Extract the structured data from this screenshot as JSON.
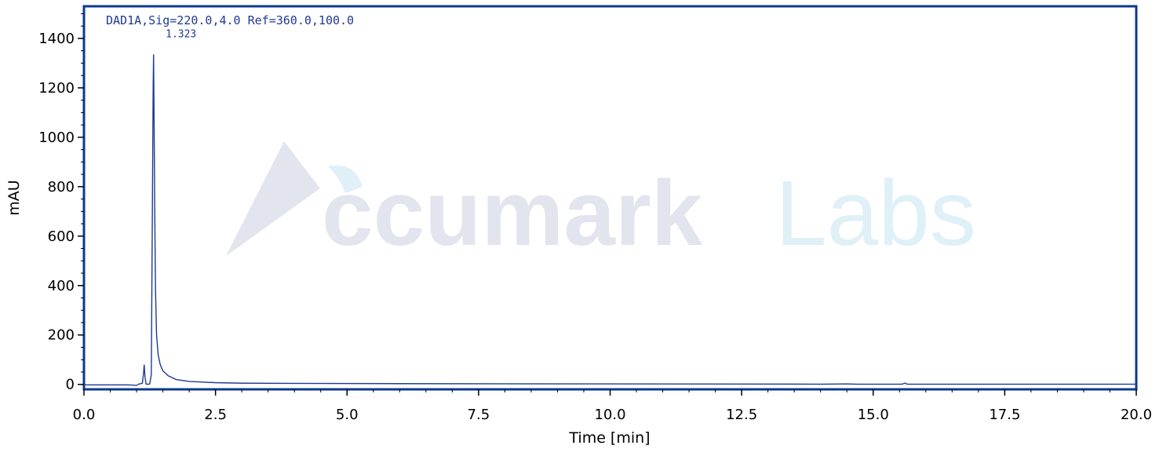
{
  "chart_data": {
    "type": "line",
    "title": "",
    "signal_label": "DAD1A,Sig=220.0,4.0 Ref=360.0,100.0",
    "xlabel": "Time [min]",
    "ylabel": "mAU",
    "xlim": [
      0,
      20
    ],
    "ylim": [
      -20,
      1530
    ],
    "x_ticks": [
      0,
      2.5,
      5,
      7.5,
      10,
      12.5,
      15,
      17.5,
      20
    ],
    "x_tick_labels": [
      "0.0",
      "2.5",
      "5.0",
      "7.5",
      "10.0",
      "12.5",
      "15.0",
      "17.5",
      "20.0"
    ],
    "y_ticks": [
      0,
      200,
      400,
      600,
      800,
      1000,
      1200,
      1400
    ],
    "y_tick_labels": [
      "0",
      "200",
      "400",
      "600",
      "800",
      "1000",
      "1200",
      "1400"
    ],
    "grid": false,
    "series": [
      {
        "color": "#1f3a93",
        "points": [
          [
            0,
            -2
          ],
          [
            0.5,
            -2
          ],
          [
            0.85,
            -2
          ],
          [
            0.95,
            -3
          ],
          [
            1.0,
            -4
          ],
          [
            1.05,
            2
          ],
          [
            1.08,
            3
          ],
          [
            1.11,
            5
          ],
          [
            1.13,
            40
          ],
          [
            1.145,
            80
          ],
          [
            1.16,
            30
          ],
          [
            1.18,
            2
          ],
          [
            1.21,
            0
          ],
          [
            1.25,
            2
          ],
          [
            1.28,
            40
          ],
          [
            1.3,
            700
          ],
          [
            1.315,
            1200
          ],
          [
            1.323,
            1335
          ],
          [
            1.33,
            1150
          ],
          [
            1.345,
            700
          ],
          [
            1.36,
            380
          ],
          [
            1.38,
            200
          ],
          [
            1.41,
            120
          ],
          [
            1.45,
            80
          ],
          [
            1.5,
            55
          ],
          [
            1.6,
            35
          ],
          [
            1.75,
            20
          ],
          [
            2.0,
            12
          ],
          [
            2.5,
            7
          ],
          [
            3.0,
            5
          ],
          [
            4.0,
            4
          ],
          [
            6.0,
            3
          ],
          [
            10.0,
            2
          ],
          [
            14.0,
            1
          ],
          [
            14.5,
            2
          ],
          [
            14.7,
            1
          ],
          [
            15.55,
            1
          ],
          [
            15.6,
            5
          ],
          [
            15.65,
            1
          ],
          [
            17.0,
            1
          ],
          [
            20.0,
            1
          ]
        ]
      }
    ],
    "annotations": [
      {
        "text": "1.323",
        "x": 1.323
      }
    ],
    "watermark": "Accumark Labs"
  },
  "colors": {
    "frame": "#0b3a8f",
    "trace": "#1f3a93",
    "annotation": "#1f3a93",
    "watermark_primary": "#e2e4ee",
    "watermark_secondary": "#dff0f7"
  }
}
